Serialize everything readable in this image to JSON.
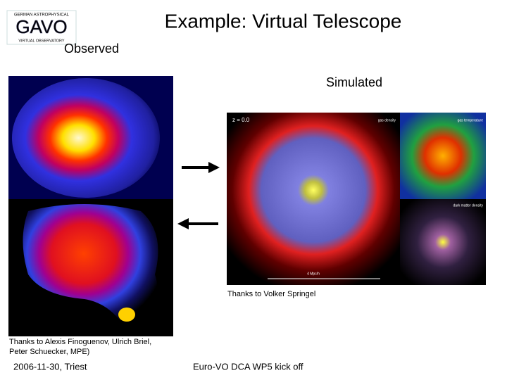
{
  "logo": {
    "top": "GERMAN ASTROPHYSICAL",
    "name": "GAVO",
    "bottom": "VIRTUAL OBSERVATORY"
  },
  "title": "Example: Virtual Telescope",
  "observed": {
    "label": "Observed",
    "credit_lines": [
      "Thanks to Alexis Finoguenov, Ulrich Briel,",
      "Peter Schuecker, MPE)"
    ]
  },
  "simulated": {
    "label": "Simulated",
    "redshift": "z = 0.0",
    "panels": [
      "gas density",
      "gas temperature",
      "dark matter density"
    ],
    "scale": "4 Mpc/h",
    "credit": "Thanks to Volker Springel"
  },
  "footer": {
    "date": "2006-11-30, Triest",
    "event": "Euro-VO DCA WP5 kick off"
  }
}
